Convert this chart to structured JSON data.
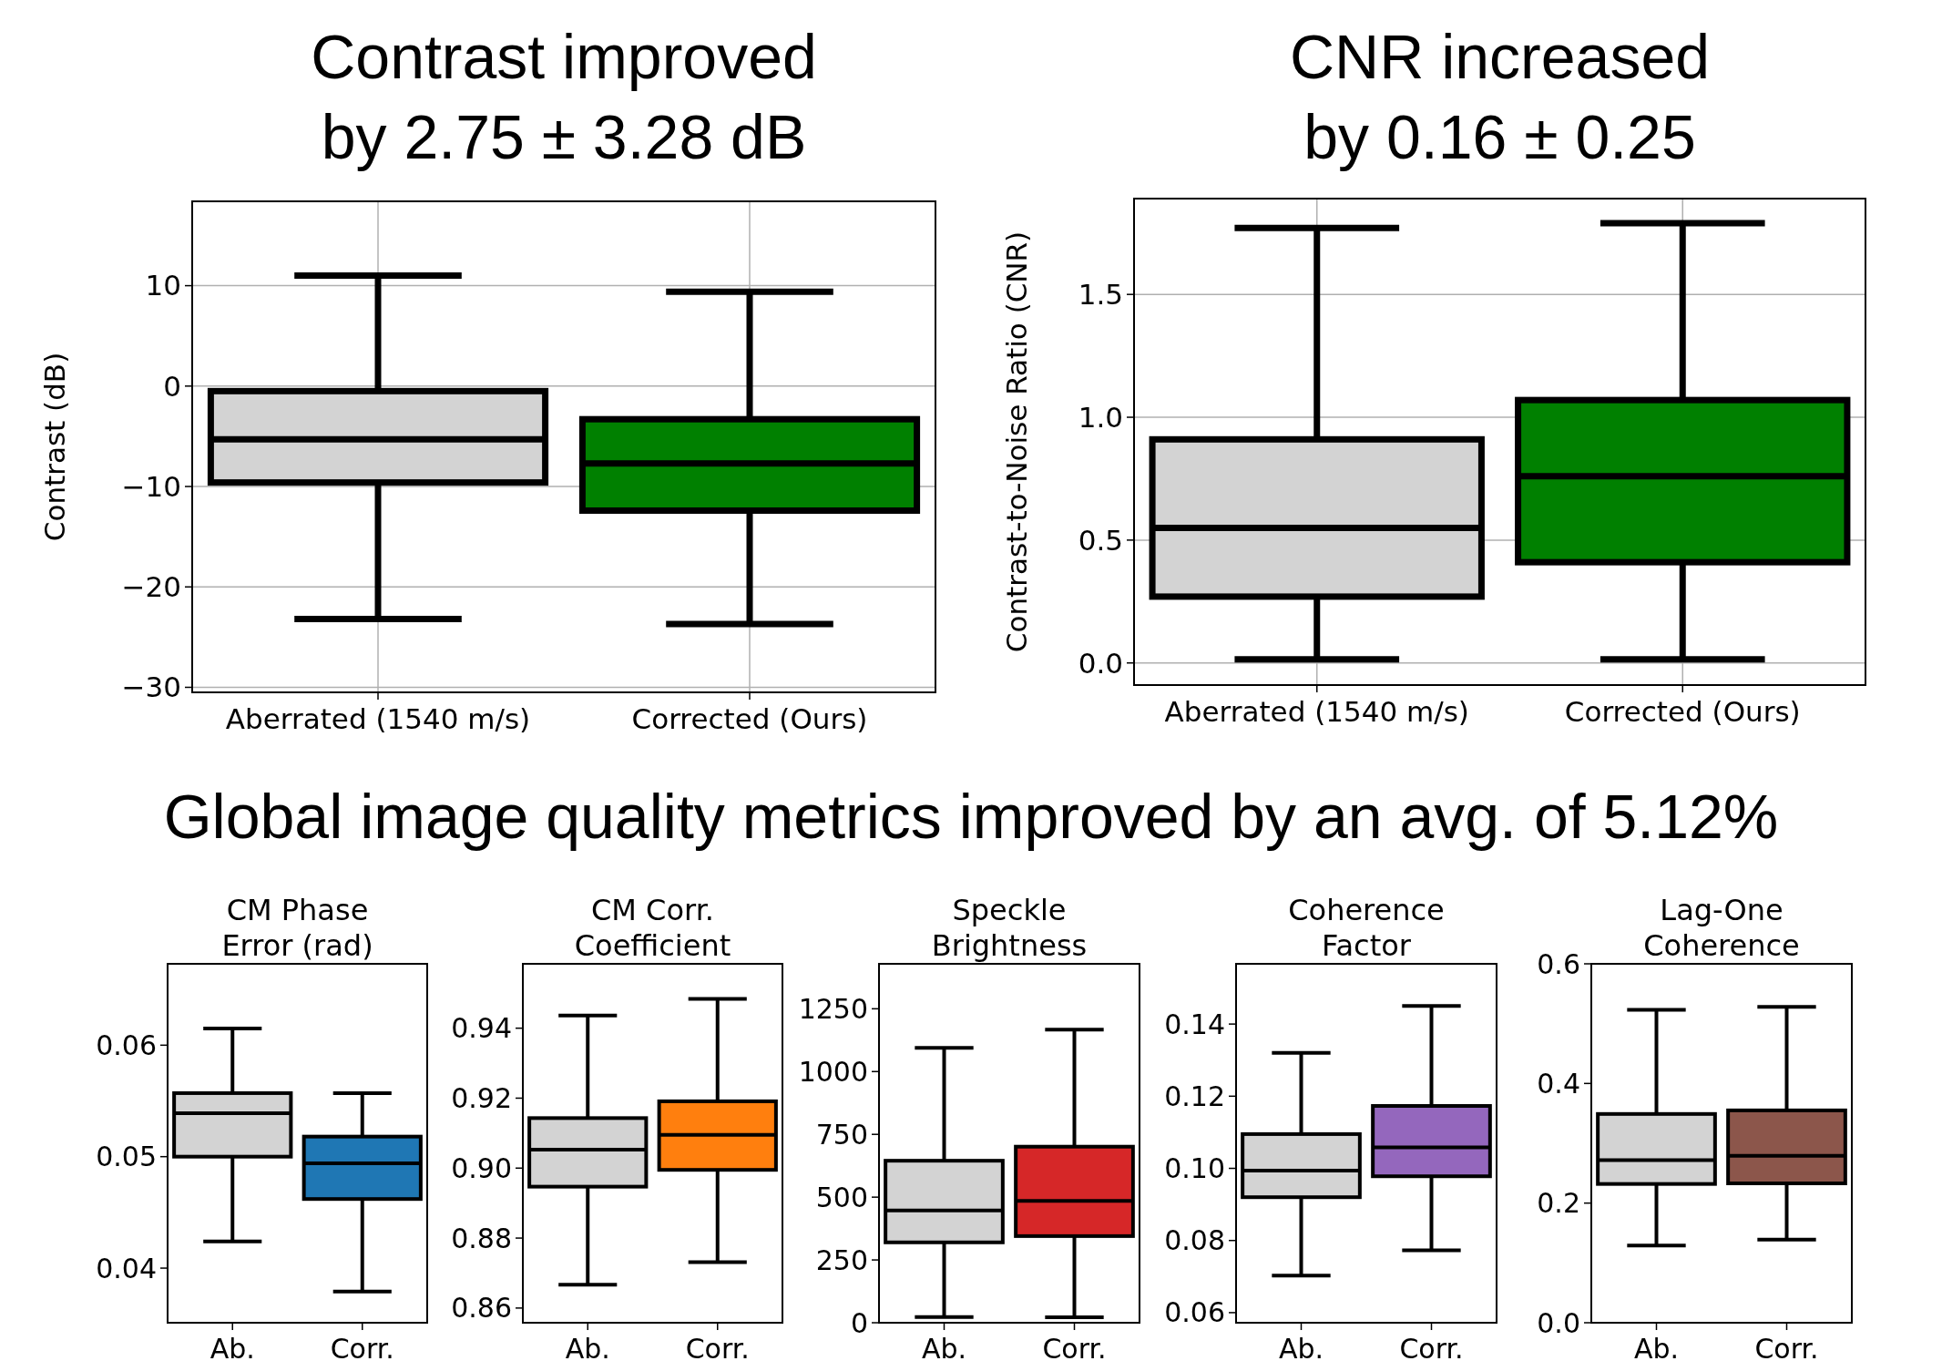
{
  "chart_data": [
    {
      "type": "box",
      "title": "Contrast improved\nby 2.75 ± 3.28 dB",
      "ylabel": "Contrast (dB)",
      "categories": [
        "Aberrated (1540 m/s)",
        "Corrected (Ours)"
      ],
      "colors": [
        "#d3d3d3",
        "#008000"
      ],
      "grid": true,
      "ylim": [
        -30.5,
        18.4
      ],
      "yticks": [
        -30,
        -20,
        -10,
        0,
        10
      ],
      "boxes": [
        {
          "low": -23.2,
          "q1": -9.6,
          "median": -5.3,
          "q3": -0.5,
          "high": 11.0
        },
        {
          "low": -23.7,
          "q1": -12.4,
          "median": -7.7,
          "q3": -3.3,
          "high": 9.4
        }
      ]
    },
    {
      "type": "box",
      "title": "CNR increased\nby 0.16 ± 0.25",
      "ylabel": "Contrast-to-Noise Ratio (CNR)",
      "categories": [
        "Aberrated (1540 m/s)",
        "Corrected (Ours)"
      ],
      "colors": [
        "#d3d3d3",
        "#008000"
      ],
      "grid": true,
      "ylim": [
        -0.09,
        1.89
      ],
      "yticks": [
        {
          "value": 0,
          "label": "0.0"
        },
        0.5,
        {
          "value": 1,
          "label": "1.0"
        },
        1.5
      ],
      "boxes": [
        {
          "low": 0.015,
          "q1": 0.27,
          "median": 0.55,
          "q3": 0.91,
          "high": 1.77
        },
        {
          "low": 0.015,
          "q1": 0.41,
          "median": 0.76,
          "q3": 1.07,
          "high": 1.79
        }
      ]
    },
    {
      "type": "box",
      "title": "CM Phase\nError (rad)",
      "annotations": [
        "Global image quality metrics improved by an avg. of 5.12%"
      ],
      "categories": [
        "Ab.",
        "Corr."
      ],
      "colors": [
        "#d3d3d3",
        "#1f77b4"
      ],
      "ylim": [
        0.0351,
        0.0673
      ],
      "yticks": [
        0.04,
        0.05,
        0.06
      ],
      "boxes": [
        {
          "low": 0.0424,
          "q1": 0.05,
          "median": 0.0539,
          "q3": 0.0557,
          "high": 0.0615
        },
        {
          "low": 0.0379,
          "q1": 0.0462,
          "median": 0.0494,
          "q3": 0.0518,
          "high": 0.0557
        }
      ]
    },
    {
      "type": "box",
      "title": "CM Corr.\nCoefficient",
      "categories": [
        "Ab.",
        "Corr."
      ],
      "colors": [
        "#d3d3d3",
        "#ff7f0e"
      ],
      "ylim": [
        0.8558,
        0.9584
      ],
      "yticks": [
        0.86,
        0.88,
        {
          "value": 0.9,
          "label": "0.90"
        },
        0.92,
        0.94
      ],
      "boxes": [
        {
          "low": 0.8667,
          "q1": 0.8947,
          "median": 0.9053,
          "q3": 0.9143,
          "high": 0.9436
        },
        {
          "low": 0.8731,
          "q1": 0.8995,
          "median": 0.9095,
          "q3": 0.9191,
          "high": 0.9484
        }
      ]
    },
    {
      "type": "box",
      "title": "Speckle\nBrightness",
      "categories": [
        "Ab.",
        "Corr."
      ],
      "colors": [
        "#d3d3d3",
        "#d62728"
      ],
      "ylim": [
        0,
        1429
      ],
      "yticks": [
        0,
        250,
        500,
        750,
        1000,
        1250
      ],
      "boxes": [
        {
          "low": 23,
          "q1": 320,
          "median": 447,
          "q3": 645,
          "high": 1094
        },
        {
          "low": 22,
          "q1": 345,
          "median": 485,
          "q3": 701,
          "high": 1167
        }
      ]
    },
    {
      "type": "box",
      "title": "Coherence\nFactor",
      "categories": [
        "Ab.",
        "Corr."
      ],
      "colors": [
        "#d3d3d3",
        "#9467bd"
      ],
      "ylim": [
        0.0572,
        0.1567
      ],
      "yticks": [
        0.06,
        0.08,
        {
          "value": 0.1,
          "label": "0.10"
        },
        0.12,
        0.14
      ],
      "boxes": [
        {
          "low": 0.0703,
          "q1": 0.092,
          "median": 0.0994,
          "q3": 0.1095,
          "high": 0.132
        },
        {
          "low": 0.0773,
          "q1": 0.0978,
          "median": 0.1058,
          "q3": 0.1173,
          "high": 0.145
        }
      ]
    },
    {
      "type": "box",
      "title": "Lag-One\nCoherence",
      "categories": [
        "Ab.",
        "Corr."
      ],
      "colors": [
        "#d3d3d3",
        "#8c564b"
      ],
      "ylim": [
        0,
        0.6
      ],
      "yticks": [
        {
          "value": 0,
          "label": "0.0"
        },
        0.2,
        0.4,
        0.6
      ],
      "boxes": [
        {
          "low": 0.129,
          "q1": 0.232,
          "median": 0.272,
          "q3": 0.349,
          "high": 0.523
        },
        {
          "low": 0.139,
          "q1": 0.233,
          "median": 0.279,
          "q3": 0.355,
          "high": 0.528
        }
      ]
    }
  ]
}
